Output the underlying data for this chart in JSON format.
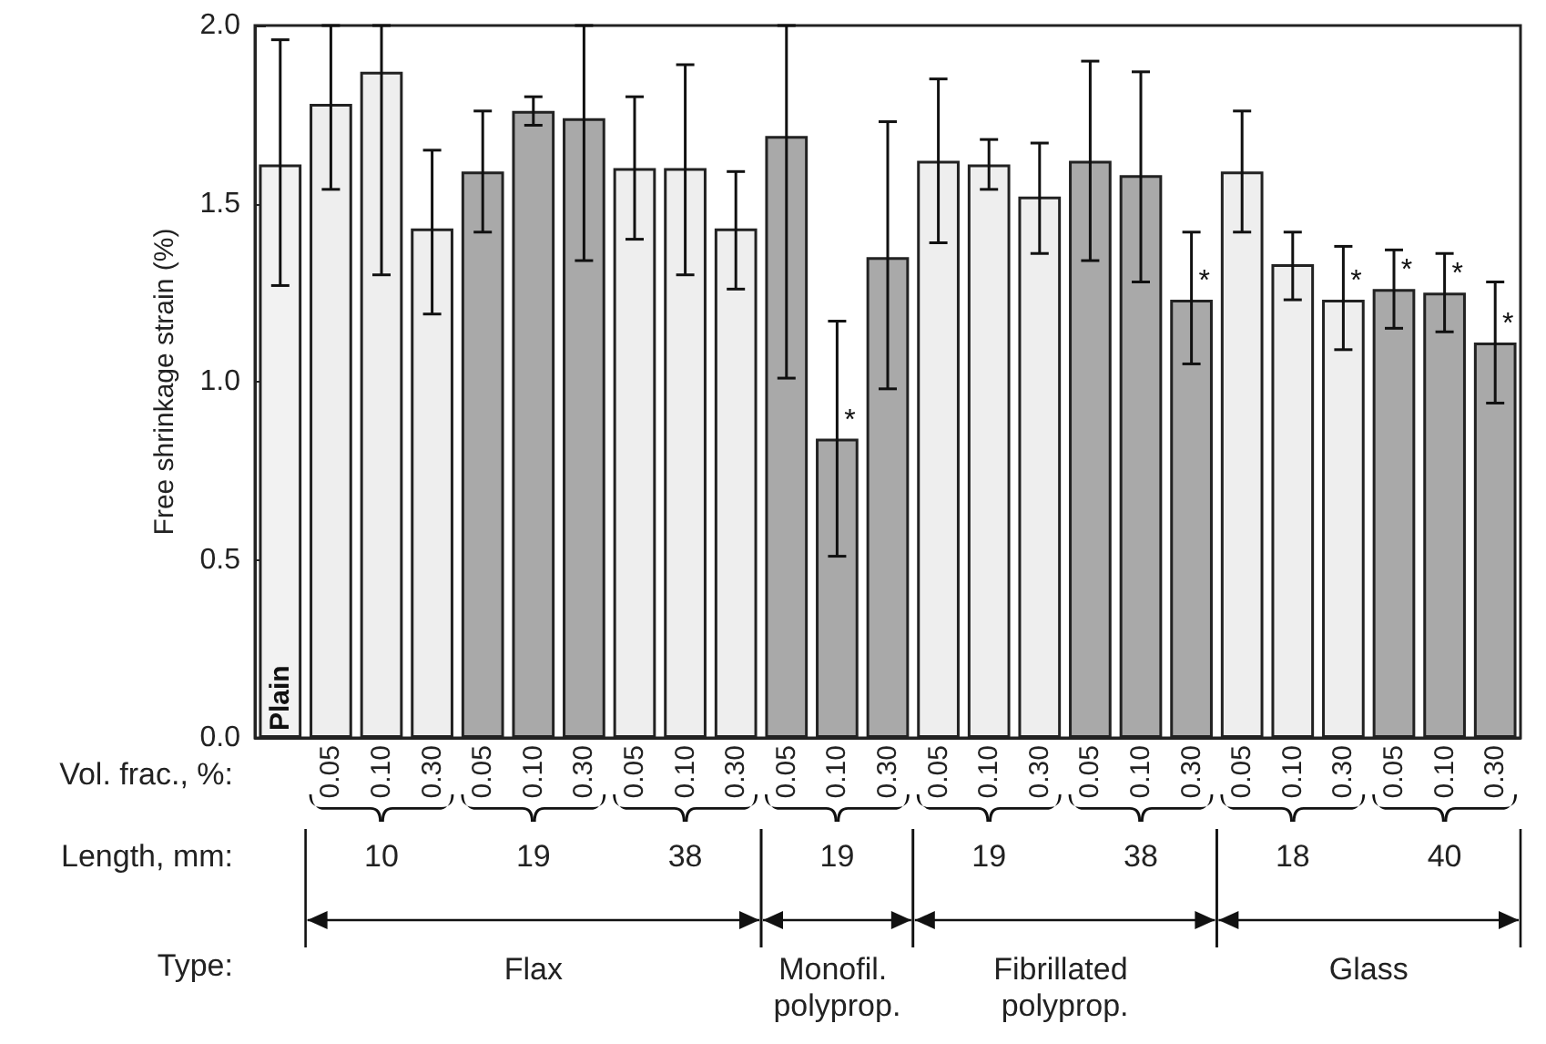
{
  "chart_data": {
    "type": "bar",
    "ylabel": "Free shrinkage strain (%)",
    "categories": [
      "Plain",
      "0.05",
      "0.10",
      "0.30",
      "0.05",
      "0.10",
      "0.30",
      "0.05",
      "0.10",
      "0.30",
      "0.05",
      "0.10",
      "0.30",
      "0.05",
      "0.10",
      "0.30",
      "0.05",
      "0.10",
      "0.30",
      "0.05",
      "0.10",
      "0.30",
      "0.05",
      "0.10",
      "0.30"
    ],
    "values": [
      1.61,
      1.78,
      1.87,
      1.43,
      1.59,
      1.76,
      1.74,
      1.6,
      1.6,
      1.43,
      1.69,
      0.84,
      1.35,
      1.62,
      1.61,
      1.52,
      1.62,
      1.58,
      1.23,
      1.59,
      1.33,
      1.23,
      1.26,
      1.25,
      1.11
    ],
    "errors": [
      [
        1.27,
        1.96
      ],
      [
        1.54,
        2.0
      ],
      [
        1.3,
        2.0
      ],
      [
        1.19,
        1.65
      ],
      [
        1.42,
        1.76
      ],
      [
        1.72,
        1.8
      ],
      [
        1.34,
        2.0
      ],
      [
        1.4,
        1.8
      ],
      [
        1.3,
        1.89
      ],
      [
        1.26,
        1.59
      ],
      [
        1.01,
        2.0
      ],
      [
        0.51,
        1.17
      ],
      [
        0.98,
        1.73
      ],
      [
        1.39,
        1.85
      ],
      [
        1.54,
        1.68
      ],
      [
        1.36,
        1.67
      ],
      [
        1.34,
        1.9
      ],
      [
        1.28,
        1.87
      ],
      [
        1.05,
        1.42
      ],
      [
        1.42,
        1.76
      ],
      [
        1.23,
        1.42
      ],
      [
        1.09,
        1.38
      ],
      [
        1.15,
        1.37
      ],
      [
        1.14,
        1.36
      ],
      [
        0.94,
        1.28
      ]
    ],
    "value_labels": [
      null,
      null,
      null,
      null,
      null,
      null,
      null,
      null,
      null,
      null,
      null,
      "*",
      null,
      null,
      null,
      null,
      null,
      null,
      "*",
      null,
      null,
      "*",
      "*",
      "*",
      "*"
    ],
    "colors": [
      "#f2f2f2",
      "#eeeeee",
      "#eeeeee",
      "#eeeeee",
      "#a9a9a9",
      "#a9a9a9",
      "#a9a9a9",
      "#eeeeee",
      "#eeeeee",
      "#eeeeee",
      "#a9a9a9",
      "#a9a9a9",
      "#a9a9a9",
      "#eeeeee",
      "#eeeeee",
      "#eeeeee",
      "#a9a9a9",
      "#a9a9a9",
      "#a9a9a9",
      "#eeeeee",
      "#eeeeee",
      "#eeeeee",
      "#a9a9a9",
      "#a9a9a9",
      "#a9a9a9"
    ],
    "ylim": [
      0,
      2.0
    ],
    "yticks": [
      {
        "value": 0,
        "label": "0.0"
      },
      {
        "value": 0.5,
        "label": "0.5"
      },
      {
        "value": 1.0,
        "label": "1.0"
      },
      {
        "value": 1.5,
        "label": "1.5"
      },
      {
        "value": 2.0,
        "label": "2.0"
      }
    ],
    "annotations": [
      "Vol. frac., %:",
      "Length, mm:",
      "Type:",
      "10",
      "19",
      "38",
      "19",
      "19",
      "38",
      "18",
      "40",
      "Flax",
      "Monofil. polyprop.",
      "Fibrillated polyprop.",
      "Glass"
    ]
  }
}
